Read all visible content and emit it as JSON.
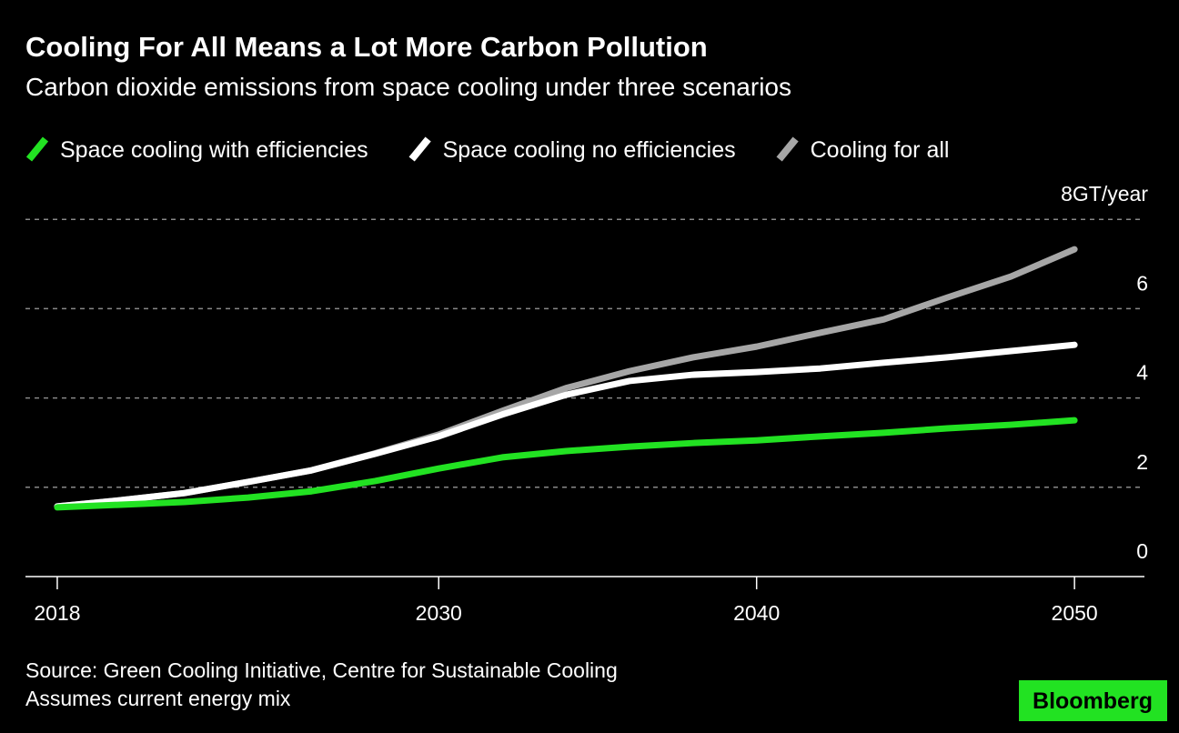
{
  "chart_data": {
    "type": "line",
    "title": "Cooling For All Means a Lot More Carbon Pollution",
    "subtitle": "Carbon dioxide emissions from space cooling under three scenarios",
    "x": [
      2018,
      2020,
      2022,
      2024,
      2026,
      2028,
      2030,
      2032,
      2034,
      2036,
      2038,
      2040,
      2042,
      2044,
      2046,
      2048,
      2050
    ],
    "series": [
      {
        "name": "Space cooling with efficiencies",
        "color": "#22e222",
        "values": [
          1.55,
          1.61,
          1.67,
          1.77,
          1.91,
          2.14,
          2.42,
          2.67,
          2.81,
          2.91,
          2.99,
          3.05,
          3.14,
          3.22,
          3.32,
          3.4,
          3.5
        ]
      },
      {
        "name": "Space cooling no efficiencies",
        "color": "#ffffff",
        "values": [
          1.57,
          1.71,
          1.87,
          2.12,
          2.38,
          2.75,
          3.14,
          3.63,
          4.07,
          4.38,
          4.52,
          4.58,
          4.66,
          4.79,
          4.91,
          5.05,
          5.19
        ]
      },
      {
        "name": "Cooling for all",
        "color": "#a6a6a6",
        "values": [
          1.57,
          1.71,
          1.87,
          2.12,
          2.38,
          2.76,
          3.18,
          3.71,
          4.22,
          4.6,
          4.91,
          5.15,
          5.46,
          5.76,
          6.25,
          6.72,
          7.33
        ]
      }
    ],
    "xlim": [
      2017,
      2052.2
    ],
    "xticks": [
      2018,
      2030,
      2040,
      2050
    ],
    "ylim": [
      0,
      8.4
    ],
    "yticks": [
      0,
      2,
      4,
      6,
      {
        "value": 8,
        "label": "8GT/year"
      }
    ],
    "grid": true,
    "legend": "top-left",
    "source": "Source: Green Cooling Initiative, Centre for Sustainable Cooling",
    "note": "Assumes current energy mix",
    "brand": "Bloomberg"
  }
}
